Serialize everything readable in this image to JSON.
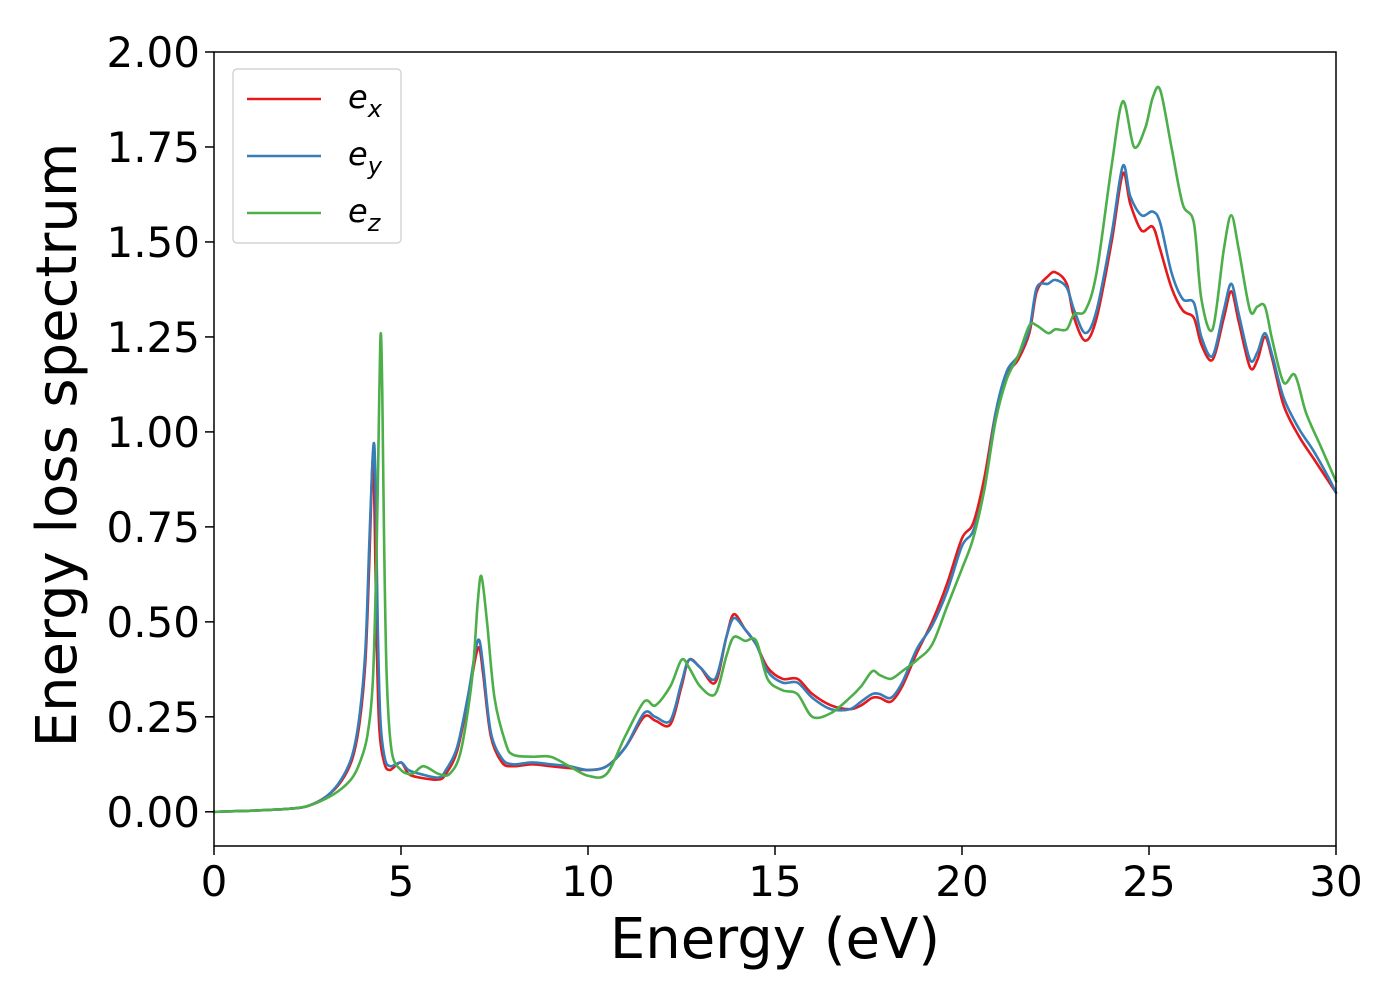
{
  "chart_data": {
    "type": "line",
    "title": "",
    "xlabel": "Energy (eV)",
    "ylabel": "Energy loss spectrum",
    "xlim": [
      0,
      30
    ],
    "ylim": [
      -0.09,
      2.0
    ],
    "xticks": [
      0,
      5,
      10,
      15,
      20,
      25,
      30
    ],
    "xtick_labels": [
      "0",
      "5",
      "10",
      "15",
      "20",
      "25",
      "30"
    ],
    "yticks": [
      0,
      0.25,
      0.5,
      0.75,
      1.0,
      1.25,
      1.5,
      1.75,
      2.0
    ],
    "ytick_labels": [
      "0.00",
      "0.25",
      "0.50",
      "0.75",
      "1.00",
      "1.25",
      "1.50",
      "1.75",
      "2.00"
    ],
    "grid": false,
    "legend_position": "upper-left",
    "series": [
      {
        "name": "e",
        "subscript": "x",
        "color": "#e41a1c",
        "x": [
          0,
          1,
          2,
          2.5,
          3,
          3.4,
          3.7,
          3.9,
          4.05,
          4.15,
          4.22,
          4.26,
          4.3,
          4.35,
          4.42,
          4.55,
          4.7,
          5.0,
          5.2,
          5.5,
          6.0,
          6.2,
          6.5,
          6.8,
          7.0,
          7.1,
          7.2,
          7.4,
          7.7,
          8.0,
          8.5,
          9.0,
          9.5,
          10.0,
          10.5,
          11.0,
          11.5,
          11.8,
          12.2,
          12.5,
          12.7,
          13.0,
          13.4,
          13.7,
          13.9,
          14.2,
          14.5,
          14.8,
          15.2,
          15.6,
          16.0,
          16.5,
          17.0,
          17.3,
          17.6,
          17.8,
          18.1,
          18.4,
          18.8,
          19.2,
          19.6,
          20.0,
          20.3,
          20.6,
          20.9,
          21.2,
          21.5,
          21.8,
          22.0,
          22.3,
          22.5,
          22.8,
          23.0,
          23.3,
          23.6,
          24.0,
          24.3,
          24.5,
          24.8,
          25.1,
          25.3,
          25.6,
          25.9,
          26.2,
          26.4,
          26.7,
          27.0,
          27.2,
          27.4,
          27.7,
          27.9,
          28.1,
          28.3,
          28.6,
          29.0,
          29.4,
          29.8,
          30.0
        ],
        "y": [
          0.0,
          0.003,
          0.008,
          0.015,
          0.04,
          0.08,
          0.14,
          0.24,
          0.4,
          0.65,
          0.88,
          0.92,
          0.75,
          0.45,
          0.22,
          0.13,
          0.11,
          0.13,
          0.1,
          0.09,
          0.085,
          0.1,
          0.16,
          0.3,
          0.41,
          0.43,
          0.36,
          0.2,
          0.13,
          0.12,
          0.125,
          0.12,
          0.115,
          0.11,
          0.12,
          0.17,
          0.25,
          0.24,
          0.23,
          0.33,
          0.4,
          0.38,
          0.34,
          0.46,
          0.52,
          0.48,
          0.44,
          0.38,
          0.35,
          0.35,
          0.31,
          0.28,
          0.27,
          0.28,
          0.3,
          0.3,
          0.29,
          0.33,
          0.42,
          0.5,
          0.6,
          0.72,
          0.76,
          0.88,
          1.05,
          1.15,
          1.19,
          1.26,
          1.37,
          1.41,
          1.42,
          1.39,
          1.3,
          1.24,
          1.3,
          1.5,
          1.68,
          1.6,
          1.53,
          1.54,
          1.48,
          1.38,
          1.32,
          1.3,
          1.23,
          1.19,
          1.3,
          1.37,
          1.29,
          1.17,
          1.19,
          1.25,
          1.19,
          1.07,
          0.99,
          0.93,
          0.87,
          0.84
        ]
      },
      {
        "name": "e",
        "subscript": "y",
        "color": "#377eb8",
        "x": [
          0,
          1,
          2,
          2.5,
          3,
          3.4,
          3.7,
          3.9,
          4.05,
          4.15,
          4.24,
          4.29,
          4.33,
          4.38,
          4.45,
          4.57,
          4.72,
          5.0,
          5.2,
          5.5,
          6.0,
          6.2,
          6.5,
          6.8,
          7.0,
          7.1,
          7.2,
          7.4,
          7.7,
          8.0,
          8.5,
          9.0,
          9.5,
          10.0,
          10.5,
          11.0,
          11.5,
          11.8,
          12.2,
          12.5,
          12.7,
          13.0,
          13.4,
          13.7,
          13.9,
          14.2,
          14.5,
          14.8,
          15.2,
          15.6,
          16.0,
          16.5,
          17.0,
          17.3,
          17.6,
          17.8,
          18.1,
          18.4,
          18.8,
          19.2,
          19.6,
          20.0,
          20.3,
          20.6,
          20.9,
          21.2,
          21.5,
          21.8,
          22.0,
          22.3,
          22.5,
          22.8,
          23.0,
          23.3,
          23.6,
          24.0,
          24.3,
          24.5,
          24.8,
          25.1,
          25.3,
          25.6,
          25.9,
          26.2,
          26.4,
          26.7,
          27.0,
          27.2,
          27.4,
          27.7,
          27.9,
          28.1,
          28.3,
          28.6,
          29.0,
          29.4,
          29.8,
          30.0
        ],
        "y": [
          0.0,
          0.003,
          0.008,
          0.015,
          0.04,
          0.085,
          0.15,
          0.26,
          0.43,
          0.7,
          0.93,
          0.96,
          0.8,
          0.48,
          0.24,
          0.14,
          0.12,
          0.13,
          0.11,
          0.1,
          0.09,
          0.11,
          0.17,
          0.31,
          0.43,
          0.45,
          0.38,
          0.21,
          0.14,
          0.125,
          0.13,
          0.125,
          0.12,
          0.11,
          0.12,
          0.17,
          0.26,
          0.25,
          0.24,
          0.34,
          0.4,
          0.38,
          0.35,
          0.46,
          0.51,
          0.48,
          0.44,
          0.37,
          0.34,
          0.34,
          0.3,
          0.27,
          0.27,
          0.29,
          0.31,
          0.31,
          0.3,
          0.34,
          0.43,
          0.49,
          0.58,
          0.7,
          0.74,
          0.85,
          1.05,
          1.16,
          1.2,
          1.27,
          1.38,
          1.39,
          1.4,
          1.38,
          1.32,
          1.26,
          1.32,
          1.52,
          1.7,
          1.62,
          1.57,
          1.58,
          1.55,
          1.42,
          1.35,
          1.34,
          1.25,
          1.2,
          1.32,
          1.39,
          1.31,
          1.19,
          1.21,
          1.26,
          1.2,
          1.09,
          1.01,
          0.95,
          0.88,
          0.84
        ]
      },
      {
        "name": "e",
        "subscript": "z",
        "color": "#4daf4a",
        "x": [
          0,
          1,
          2,
          2.5,
          3,
          3.4,
          3.7,
          3.9,
          4.1,
          4.25,
          4.35,
          4.42,
          4.46,
          4.5,
          4.55,
          4.62,
          4.75,
          5.0,
          5.3,
          5.6,
          6.0,
          6.3,
          6.6,
          6.9,
          7.05,
          7.15,
          7.3,
          7.5,
          7.8,
          8.0,
          8.5,
          9.0,
          9.5,
          10.0,
          10.5,
          11.0,
          11.5,
          11.8,
          12.2,
          12.5,
          12.7,
          13.0,
          13.4,
          13.7,
          13.9,
          14.2,
          14.5,
          14.8,
          15.2,
          15.6,
          16.0,
          16.5,
          17.0,
          17.3,
          17.6,
          17.8,
          18.1,
          18.4,
          18.8,
          19.2,
          19.6,
          20.0,
          20.3,
          20.6,
          20.9,
          21.2,
          21.5,
          21.8,
          22.0,
          22.3,
          22.5,
          22.8,
          23.0,
          23.3,
          23.6,
          24.0,
          24.3,
          24.6,
          24.9,
          25.1,
          25.3,
          25.6,
          25.9,
          26.2,
          26.4,
          26.7,
          27.0,
          27.2,
          27.4,
          27.7,
          27.9,
          28.1,
          28.3,
          28.6,
          28.9,
          29.2,
          29.6,
          30.0
        ],
        "y": [
          0.0,
          0.003,
          0.008,
          0.015,
          0.035,
          0.06,
          0.09,
          0.13,
          0.2,
          0.35,
          0.7,
          1.1,
          1.26,
          1.1,
          0.7,
          0.35,
          0.16,
          0.11,
          0.1,
          0.12,
          0.1,
          0.1,
          0.16,
          0.35,
          0.55,
          0.62,
          0.5,
          0.3,
          0.18,
          0.15,
          0.145,
          0.145,
          0.12,
          0.095,
          0.1,
          0.2,
          0.29,
          0.28,
          0.33,
          0.4,
          0.38,
          0.33,
          0.31,
          0.41,
          0.46,
          0.45,
          0.45,
          0.35,
          0.32,
          0.31,
          0.25,
          0.26,
          0.3,
          0.33,
          0.37,
          0.36,
          0.35,
          0.37,
          0.4,
          0.44,
          0.54,
          0.64,
          0.72,
          0.85,
          1.03,
          1.14,
          1.2,
          1.28,
          1.28,
          1.26,
          1.27,
          1.27,
          1.31,
          1.32,
          1.42,
          1.7,
          1.87,
          1.75,
          1.8,
          1.88,
          1.9,
          1.75,
          1.6,
          1.55,
          1.35,
          1.27,
          1.48,
          1.57,
          1.48,
          1.32,
          1.33,
          1.33,
          1.24,
          1.13,
          1.15,
          1.05,
          0.96,
          0.87
        ]
      }
    ]
  }
}
